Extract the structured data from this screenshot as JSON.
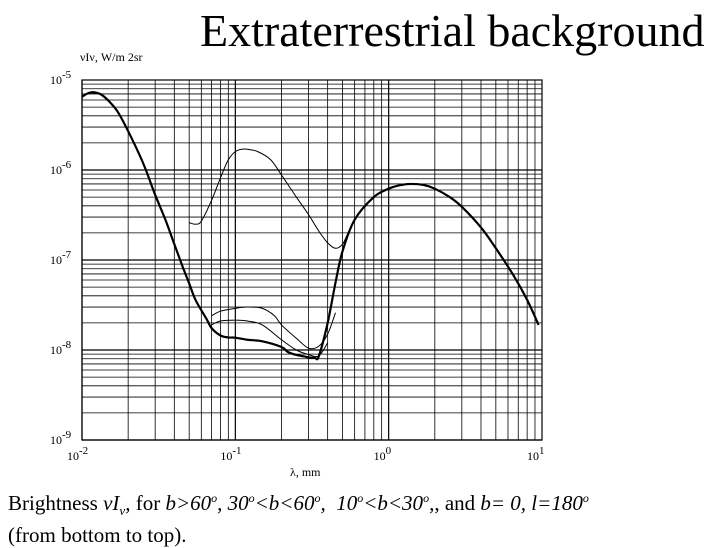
{
  "chart_data": {
    "type": "line",
    "title": "Extraterrestrial background",
    "ylabel": "νIν, W/m 2sr",
    "xlabel": "λ, mm",
    "x_scale": "log",
    "y_scale": "log",
    "xlim": [
      0.01,
      10
    ],
    "ylim": [
      1e-09,
      1e-05
    ],
    "grid": true,
    "x_ticks": [
      {
        "value": 0.01,
        "base": "10",
        "exp": "-2"
      },
      {
        "value": 0.1,
        "base": "10",
        "exp": "-1"
      },
      {
        "value": 1,
        "base": "10",
        "exp": "0"
      },
      {
        "value": 10,
        "base": "10",
        "exp": "1"
      }
    ],
    "y_ticks": [
      {
        "value": 1e-05,
        "base": "10",
        "exp": "-5"
      },
      {
        "value": 1e-06,
        "base": "10",
        "exp": "-6"
      },
      {
        "value": 1e-07,
        "base": "10",
        "exp": "-7"
      },
      {
        "value": 1e-08,
        "base": "10",
        "exp": "-8"
      },
      {
        "value": 1e-09,
        "base": "10",
        "exp": "-9"
      }
    ],
    "series": [
      {
        "color": "#000000",
        "thick": true,
        "x": [
          0.01,
          0.0107,
          0.0115,
          0.0125,
          0.0135,
          0.015,
          0.017,
          0.02,
          0.025,
          0.03,
          0.035,
          0.04,
          0.045,
          0.05,
          0.055,
          0.065,
          0.07,
          0.08,
          0.09,
          0.1,
          0.12,
          0.15,
          0.2,
          0.22,
          0.25,
          0.28,
          0.3,
          0.33,
          0.35,
          0.4,
          0.45,
          0.5,
          0.6,
          0.8,
          1.0,
          1.2,
          1.4,
          1.7,
          2,
          2.5,
          3,
          4,
          5,
          6.5,
          8,
          9.5
        ],
        "y": [
          6.5e-06,
          7e-06,
          7.3e-06,
          7.2e-06,
          6.8e-06,
          5.8e-06,
          4.5e-06,
          2.7e-06,
          1.2e-06,
          5.3e-07,
          2.8e-07,
          1.5e-07,
          8.7e-08,
          5.5e-08,
          3.6e-08,
          2.2e-08,
          1.75e-08,
          1.45e-08,
          1.38e-08,
          1.37e-08,
          1.3e-08,
          1.25e-08,
          1.08e-08,
          9.5e-09,
          8.8e-09,
          8.5e-09,
          8.3e-09,
          8.2e-09,
          8.5e-09,
          2e-08,
          5.6e-08,
          1.25e-07,
          2.8e-07,
          5e-07,
          6.2e-07,
          6.8e-07,
          7e-07,
          6.8e-07,
          6.2e-07,
          5e-07,
          3.9e-07,
          2.3e-07,
          1.35e-07,
          6.8e-08,
          3.6e-08,
          1.9e-08
        ]
      },
      {
        "color": "#000000",
        "thick": false,
        "x": [
          0.07,
          0.08,
          0.1,
          0.12,
          0.15,
          0.2,
          0.25,
          0.3,
          0.35,
          0.4
        ],
        "y": [
          1.9e-08,
          2.1e-08,
          2.15e-08,
          2.1e-08,
          1.9e-08,
          1.3e-08,
          1e-08,
          8.9e-09,
          8.6e-09,
          1.2e-08
        ]
      },
      {
        "color": "#000000",
        "thick": false,
        "x": [
          0.07,
          0.08,
          0.1,
          0.12,
          0.15,
          0.18,
          0.2,
          0.25,
          0.3,
          0.35,
          0.4,
          0.45
        ],
        "y": [
          2.4e-08,
          2.7e-08,
          2.9e-08,
          3e-08,
          2.9e-08,
          2.4e-08,
          1.9e-08,
          1.35e-08,
          1.05e-08,
          1.1e-08,
          1.5e-08,
          2.6e-08
        ]
      },
      {
        "color": "#000000",
        "thick": false,
        "x": [
          0.05,
          0.055,
          0.06,
          0.07,
          0.08,
          0.09,
          0.1,
          0.11,
          0.12,
          0.14,
          0.17,
          0.2,
          0.25,
          0.3,
          0.35,
          0.4,
          0.45,
          0.5,
          0.55
        ],
        "y": [
          2.6e-07,
          2.5e-07,
          2.7e-07,
          4.6e-07,
          8.2e-07,
          1.3e-06,
          1.6e-06,
          1.7e-06,
          1.7e-06,
          1.6e-06,
          1.3e-06,
          8.8e-07,
          5e-07,
          3.2e-07,
          2.1e-07,
          1.55e-07,
          1.35e-07,
          1.5e-07,
          2.1e-07
        ]
      }
    ]
  },
  "caption": {
    "line1_prefix": "Brightness ",
    "nu_I": "νI",
    "nu_sub": "ν",
    "for_word": ",  for ",
    "cond1": "b>60",
    "cond2": "30",
    "cond2b": "<b<60",
    "cond3": "10",
    "cond3b": "<b<30",
    "cond4_pre": ", and ",
    "cond4": "b= 0, l=180",
    "deg": "o",
    "line2": "(from bottom to top)."
  }
}
